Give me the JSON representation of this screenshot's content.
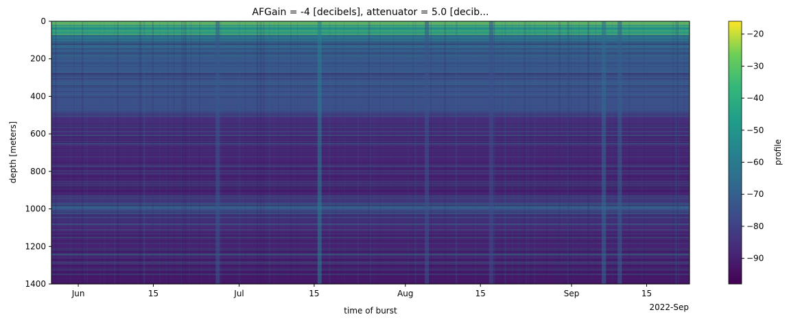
{
  "chart_data": {
    "type": "heatmap",
    "title": "AFGain = -4 [decibels], attenuator = 5.0 [decib...",
    "xlabel": "time of burst",
    "ylabel": "depth [meters]",
    "x_offset_label": "2022-Sep",
    "x_ticks": [
      "Jun",
      "15",
      "Jul",
      "15",
      "Aug",
      "15",
      "Sep",
      "15"
    ],
    "x_tick_dates": [
      "2022-06-01",
      "2022-06-15",
      "2022-07-01",
      "2022-07-15",
      "2022-08-01",
      "2022-08-15",
      "2022-09-01",
      "2022-09-15"
    ],
    "xlim": [
      "2022-05-27",
      "2022-09-23"
    ],
    "y_ticks": [
      "0",
      "200",
      "400",
      "600",
      "800",
      "1000",
      "1200",
      "1400"
    ],
    "y_tick_values": [
      0,
      200,
      400,
      600,
      800,
      1000,
      1200,
      1400
    ],
    "ylim": [
      1400,
      0
    ],
    "colorbar": {
      "label": "profile",
      "colormap": "viridis",
      "ticks": [
        "−20",
        "−30",
        "−40",
        "−50",
        "−60",
        "−70",
        "−80",
        "−90"
      ],
      "tick_values": [
        -20,
        -30,
        -40,
        -50,
        -60,
        -70,
        -80,
        -90
      ],
      "range": [
        -98,
        -16
      ]
    },
    "depth_profile": [
      {
        "depth": 0,
        "value": -22
      },
      {
        "depth": 30,
        "value": -52
      },
      {
        "depth": 80,
        "value": -62
      },
      {
        "depth": 150,
        "value": -70
      },
      {
        "depth": 300,
        "value": -74
      },
      {
        "depth": 480,
        "value": -76
      },
      {
        "depth": 520,
        "value": -86
      },
      {
        "depth": 900,
        "value": -90
      },
      {
        "depth": 960,
        "value": -84
      },
      {
        "depth": 985,
        "value": -72
      },
      {
        "depth": 1030,
        "value": -80
      },
      {
        "depth": 1100,
        "value": -88
      },
      {
        "depth": 1400,
        "value": -92
      }
    ],
    "time_features": [
      {
        "date": "2022-06-27",
        "value": -72,
        "note": "dark column near surface"
      },
      {
        "date": "2022-07-16",
        "value": -58
      },
      {
        "date": "2022-08-05",
        "value": -74
      },
      {
        "date": "2022-08-17",
        "value": -76
      },
      {
        "date": "2022-09-07",
        "value": -66
      },
      {
        "date": "2022-09-10",
        "value": -70
      }
    ]
  }
}
